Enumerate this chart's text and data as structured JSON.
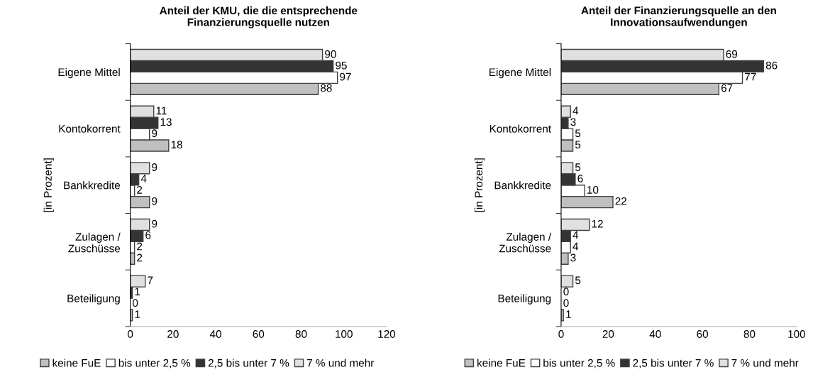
{
  "chart_data": [
    {
      "type": "bar",
      "orientation": "horizontal",
      "title": "Anteil der KMU, die die entsprechende\nFinanzierungsquelle nutzen",
      "ylabel": "[in Prozent]",
      "categories": [
        "Eigene Mittel",
        "Kontokorrent",
        "Bankkredite",
        "Zulagen /\nZuschüsse",
        "Beteiligung"
      ],
      "series": [
        {
          "name": "keine FuE",
          "color": "#c0c0c0",
          "values": [
            88,
            18,
            9,
            2,
            1
          ]
        },
        {
          "name": "bis unter 2,5 %",
          "color": "#ffffff",
          "values": [
            97,
            9,
            2,
            2,
            0
          ]
        },
        {
          "name": "2,5 bis unter 7 %",
          "color": "#333333",
          "values": [
            95,
            13,
            4,
            6,
            1
          ]
        },
        {
          "name": "7 % und mehr",
          "color": "#e0e0e0",
          "values": [
            90,
            11,
            9,
            9,
            7
          ]
        }
      ],
      "xlim": [
        0,
        120
      ],
      "xticks": [
        0,
        20,
        40,
        60,
        80,
        100,
        120
      ],
      "data_labels": true,
      "grid": false,
      "legend": "bottom"
    },
    {
      "type": "bar",
      "orientation": "horizontal",
      "title": "Anteil der Finanzierungsquelle an den\nInnovationsaufwendungen",
      "ylabel": "[in Prozent]",
      "categories": [
        "Eigene Mittel",
        "Kontokorrent",
        "Bankkredite",
        "Zulagen /\nZuschüsse",
        "Beteiligung"
      ],
      "series": [
        {
          "name": "keine FuE",
          "color": "#c0c0c0",
          "values": [
            67,
            5,
            22,
            3,
            1
          ]
        },
        {
          "name": "bis unter 2,5 %",
          "color": "#ffffff",
          "values": [
            77,
            5,
            10,
            4,
            0
          ]
        },
        {
          "name": "2,5 bis unter 7 %",
          "color": "#333333",
          "values": [
            86,
            3,
            6,
            4,
            0
          ]
        },
        {
          "name": "7 % und mehr",
          "color": "#e0e0e0",
          "values": [
            69,
            4,
            5,
            12,
            5
          ]
        }
      ],
      "xlim": [
        0,
        100
      ],
      "xticks": [
        0,
        20,
        40,
        60,
        80,
        100
      ],
      "data_labels": true,
      "grid": false,
      "legend": "bottom"
    }
  ]
}
